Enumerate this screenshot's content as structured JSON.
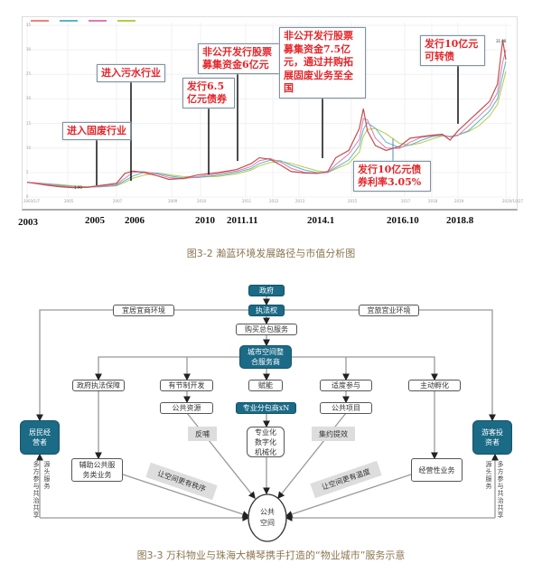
{
  "figure1": {
    "caption": "图3-2 瀚蓝环境发展路径与市值分析图",
    "annotations": [
      {
        "text": "进入固废行业"
      },
      {
        "text": "进入污水行业"
      },
      {
        "text": "发行6.5亿元债券"
      },
      {
        "text": "非公开发行股票募集资金6亿元"
      },
      {
        "text": "非公开发行股票募集资金7.5亿元，通过并购拓展固废业务至全国"
      },
      {
        "text": "发行10亿元可转债"
      },
      {
        "text": "发行10亿元债券利率3.05%"
      }
    ],
    "milestone_years": [
      "2003",
      "2005",
      "2006",
      "2010",
      "2011.11",
      "2014.1",
      "2016.10",
      "2018.8"
    ]
  },
  "chart_data": {
    "type": "line",
    "title": "",
    "xlabel": "",
    "ylabel": "",
    "ylim": [
      0,
      35
    ],
    "y_ticks": [
      "0",
      "5",
      "10",
      "15",
      "20",
      "25",
      "30",
      "35"
    ],
    "x_ticks": [
      "2003/1/7",
      "2005",
      "2007",
      "2009",
      "2010",
      "2011",
      "2012",
      "2013",
      "2015",
      "2017",
      "2018",
      "2019",
      "2020/10/27"
    ],
    "grid": true,
    "point_labels": {
      "min": "1.90",
      "max": "31.98"
    },
    "colors": {
      "price": "#c0504d",
      "ma1": "#f08080",
      "ma2": "#5ab4c8",
      "ma3": "#e07ab0",
      "ma4": "#b9c94a"
    },
    "series": [
      {
        "x": [
          2003,
          2003.5,
          2004,
          2004.6,
          2005.2,
          2005.8,
          2006.4,
          2007,
          2007.3,
          2007.6,
          2008,
          2008.5,
          2008.9,
          2009.4,
          2009.9,
          2010.4,
          2010.8,
          2011.2,
          2011.5,
          2011.9,
          2012.3,
          2012.7,
          2013.2,
          2013.7,
          2014.1,
          2014.4,
          2014.9,
          2015.3,
          2015.45,
          2015.6,
          2015.9,
          2016.3,
          2016.8,
          2017.2,
          2017.6,
          2018,
          2018.4,
          2018.7,
          2019,
          2019.4,
          2019.8,
          2020.2,
          2020.5,
          2020.7,
          2020.82
        ],
        "values": [
          3.0,
          2.7,
          2.4,
          2.1,
          1.9,
          2.0,
          2.4,
          2.8,
          4.8,
          5.3,
          5.0,
          4.3,
          3.6,
          3.8,
          4.5,
          5.0,
          5.6,
          6.8,
          8.0,
          7.7,
          6.5,
          5.2,
          4.9,
          4.8,
          5.2,
          8.0,
          9.5,
          14,
          18,
          13.5,
          10.5,
          9.5,
          10.3,
          12.0,
          12.3,
          12.6,
          12.8,
          11.6,
          13.5,
          15.5,
          17.5,
          19.5,
          23,
          31.98,
          28
        ]
      }
    ]
  },
  "figure2": {
    "caption": "图3-3 万科物业与珠海大横琴携手打造的“物业城市”服务示意",
    "nodes": {
      "gov": "政府",
      "law": "执法权",
      "env_left": "宜居宜商环境",
      "env_right": "宜旅宜业环境",
      "buy": "购买总包服务",
      "integrator": "城市空间整合服务商",
      "law_guarantee": "政府执法保障",
      "moderate_dev": "有节制开发",
      "empower": "赋能",
      "moderate_part": "适度参与",
      "incubate": "主动孵化",
      "public_resource": "公共资源",
      "subcontractor": "专业分包商xN",
      "public_project": "公共项目",
      "feedback": "反哺",
      "efficiency": "集约提效",
      "professional": "专业化数字化机械化",
      "resident": "居民经营者",
      "tourist": "游客投资者",
      "aux_service": "辅助公共服务类业务",
      "commercial": "经营性业务",
      "order": "让空间更有秩序",
      "warmth": "让空间更有温度",
      "public_space": "公共空间",
      "source_service_l": "源头服务",
      "co_gov_l": "多方参与共治共享",
      "source_service_r": "源头服务",
      "co_gov_r": "多方参与共治共享"
    }
  }
}
